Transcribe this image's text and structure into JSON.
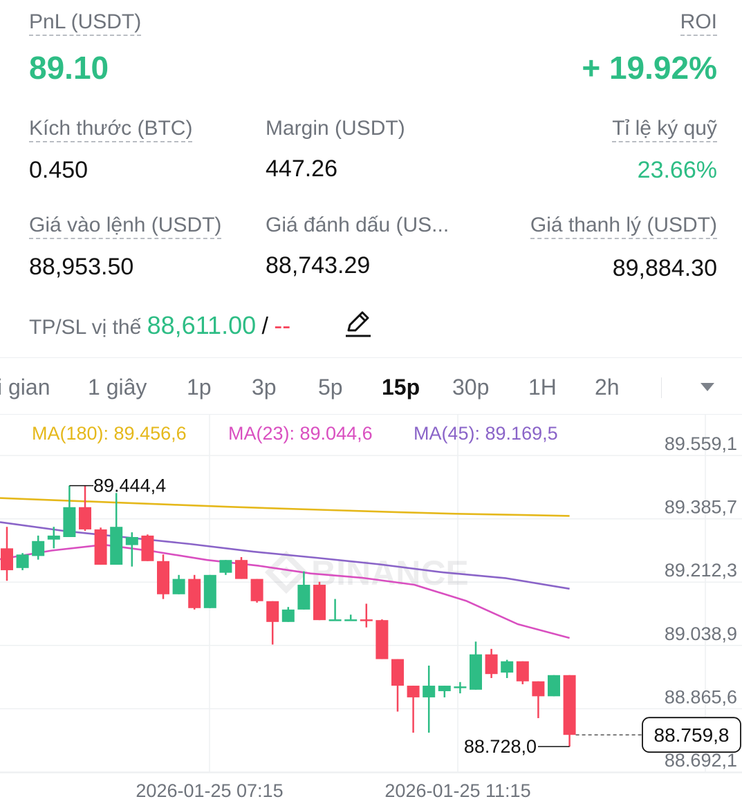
{
  "position": {
    "pnl_label": "PnL (USDT)",
    "pnl_value": "89.10",
    "roi_label": "ROI",
    "roi_value": "+ 19.92%",
    "size_label": "Kích thước (BTC)",
    "size_value": "0.450",
    "margin_label": "Margin (USDT)",
    "margin_value": "447.26",
    "margin_ratio_label": "Tỉ lệ ký quỹ",
    "margin_ratio_value": "23.66%",
    "entry_label": "Giá vào lệnh (USDT)",
    "entry_value": "88,953.50",
    "mark_label": "Giá đánh dấu (US...",
    "mark_value": "88,743.29",
    "liq_label": "Giá thanh lý (USDT)",
    "liq_value": "89,884.30",
    "tpsl_label": "TP/SL vị thế",
    "tp_value": "88,611.00",
    "tpsl_sep": "/",
    "sl_value": "--"
  },
  "interval_tabs": {
    "items": [
      "i gian",
      "1 giây",
      "1p",
      "3p",
      "5p",
      "15p",
      "30p",
      "1H",
      "2h"
    ],
    "active": "15p",
    "more_icon": "chevron-down-icon"
  },
  "indicators": {
    "ma180": "MA(180): 89.456,6",
    "ma23": "MA(23): 89.044,6",
    "ma45": "MA(45): 89.169,5"
  },
  "colors": {
    "up": "#2ebd85",
    "down": "#f6465d",
    "ma180": "#e5b81b",
    "ma23": "#d94fc0",
    "ma45": "#8a64c8"
  },
  "chart_data": {
    "type": "candlestick",
    "interval": "15p",
    "y_ticks": [
      "89.559,1",
      "89.385,7",
      "89.212,3",
      "89.038,9",
      "88.865,6",
      "88.692,1"
    ],
    "x_ticks": [
      "2026-01-25 07:15",
      "2026-01-25 11:15"
    ],
    "ylim": [
      88692.1,
      89559.1
    ],
    "high_label": "89.444,4",
    "low_label": "88.728,0",
    "last_price": "88.759,8",
    "watermark": "BINANCE",
    "candles": [
      {
        "o": 89272,
        "h": 89331,
        "l": 89183,
        "c": 89212
      },
      {
        "o": 89218,
        "h": 89259,
        "l": 89212,
        "c": 89255
      },
      {
        "o": 89251,
        "h": 89307,
        "l": 89241,
        "c": 89292
      },
      {
        "o": 89296,
        "h": 89331,
        "l": 89272,
        "c": 89307
      },
      {
        "o": 89303,
        "h": 89444,
        "l": 89303,
        "c": 89385
      },
      {
        "o": 89385,
        "h": 89444,
        "l": 89320,
        "c": 89324
      },
      {
        "o": 89324,
        "h": 89329,
        "l": 89227,
        "c": 89227
      },
      {
        "o": 89227,
        "h": 89424,
        "l": 89227,
        "c": 89331
      },
      {
        "o": 89281,
        "h": 89316,
        "l": 89222,
        "c": 89303
      },
      {
        "o": 89307,
        "h": 89310,
        "l": 89237,
        "c": 89237
      },
      {
        "o": 89237,
        "h": 89255,
        "l": 89133,
        "c": 89146
      },
      {
        "o": 89146,
        "h": 89199,
        "l": 89146,
        "c": 89188
      },
      {
        "o": 89188,
        "h": 89199,
        "l": 89104,
        "c": 89108
      },
      {
        "o": 89108,
        "h": 89199,
        "l": 89108,
        "c": 89199
      },
      {
        "o": 89205,
        "h": 89240,
        "l": 89199,
        "c": 89240
      },
      {
        "o": 89240,
        "h": 89248,
        "l": 89188,
        "c": 89188
      },
      {
        "o": 89188,
        "h": 89188,
        "l": 89123,
        "c": 89127
      },
      {
        "o": 89127,
        "h": 89127,
        "l": 89008,
        "c": 89070
      },
      {
        "o": 89070,
        "h": 89111,
        "l": 89070,
        "c": 89104
      },
      {
        "o": 89104,
        "h": 89209,
        "l": 89104,
        "c": 89172
      },
      {
        "o": 89172,
        "h": 89180,
        "l": 89075,
        "c": 89075
      },
      {
        "o": 89075,
        "h": 89133,
        "l": 89075,
        "c": 89077
      },
      {
        "o": 89077,
        "h": 89090,
        "l": 89077,
        "c": 89077
      },
      {
        "o": 89077,
        "h": 89120,
        "l": 89055,
        "c": 89075
      },
      {
        "o": 89075,
        "h": 89077,
        "l": 88968,
        "c": 88968
      },
      {
        "o": 88968,
        "h": 88968,
        "l": 88824,
        "c": 88895
      },
      {
        "o": 88895,
        "h": 88895,
        "l": 88766,
        "c": 88863
      },
      {
        "o": 88863,
        "h": 88950,
        "l": 88766,
        "c": 88895
      },
      {
        "o": 88880,
        "h": 88895,
        "l": 88863,
        "c": 88895
      },
      {
        "o": 88893,
        "h": 88905,
        "l": 88874,
        "c": 88893
      },
      {
        "o": 88884,
        "h": 89016,
        "l": 88884,
        "c": 88981
      },
      {
        "o": 88981,
        "h": 88996,
        "l": 88916,
        "c": 88927
      },
      {
        "o": 88931,
        "h": 88966,
        "l": 88916,
        "c": 88962
      },
      {
        "o": 88962,
        "h": 88962,
        "l": 88899,
        "c": 88907
      },
      {
        "o": 88907,
        "h": 88907,
        "l": 88806,
        "c": 88866
      },
      {
        "o": 88866,
        "h": 88924,
        "l": 88866,
        "c": 88924
      },
      {
        "o": 88924,
        "h": 88924,
        "l": 88728,
        "c": 88760
      }
    ],
    "ma180": [
      89410,
      89404,
      89398,
      89392,
      89386,
      89381,
      89376,
      89371,
      89367,
      89364,
      89361
    ],
    "ma45": [
      89344,
      89320,
      89302,
      89284,
      89263,
      89246,
      89228,
      89206,
      89190,
      89161
    ],
    "ma23": [
      89242,
      89266,
      89282,
      89263,
      89240,
      89224,
      89203,
      89191,
      89172,
      89128,
      89064,
      89026
    ]
  }
}
